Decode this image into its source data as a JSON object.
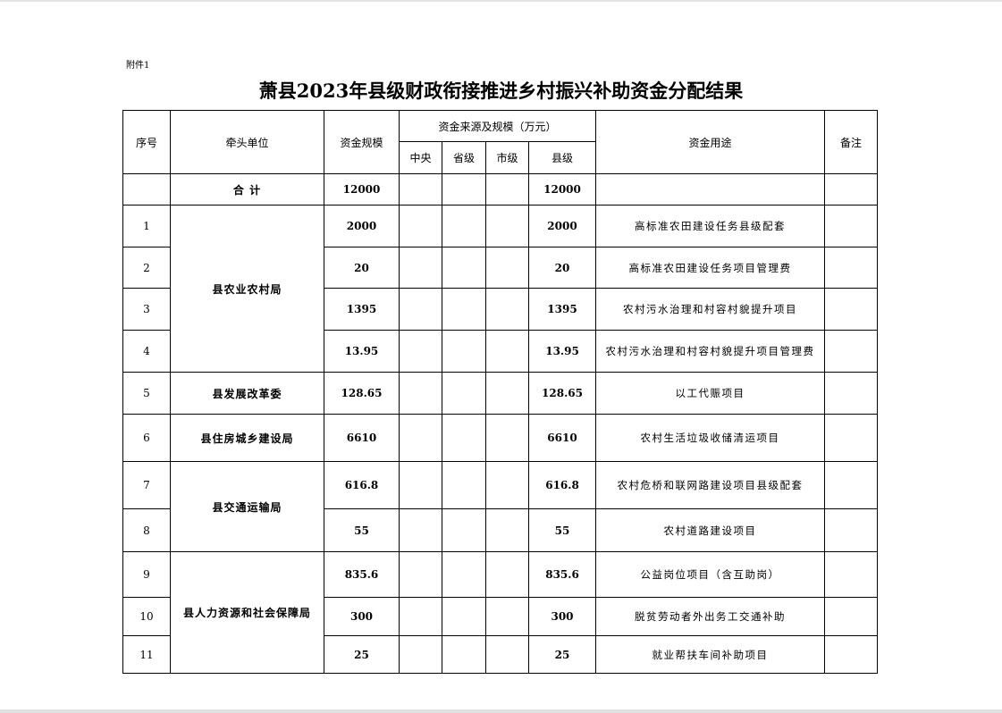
{
  "annex_label": "附件1",
  "title": "萧县2023年县级财政衔接推进乡村振兴补助资金分配结果",
  "headers": {
    "seq": "序号",
    "unit": "牵头单位",
    "scale": "资金规模",
    "source": "资金来源及规模（万元）",
    "central": "中央",
    "province": "省级",
    "city": "市级",
    "county": "县级",
    "usage": "资金用途",
    "note": "备注"
  },
  "total": {
    "label": "合 计",
    "scale": "12000",
    "county": "12000"
  },
  "units": [
    "县农业农村局",
    "县发展改革委",
    "县住房城乡建设局",
    "县交通运输局",
    "县人力资源和社会保障局"
  ],
  "rows": [
    {
      "seq": "1",
      "scale": "2000",
      "county": "2000",
      "usage": "高标准农田建设任务县级配套"
    },
    {
      "seq": "2",
      "scale": "20",
      "county": "20",
      "usage": "高标准农田建设任务项目管理费"
    },
    {
      "seq": "3",
      "scale": "1395",
      "county": "1395",
      "usage": "农村污水治理和村容村貌提升项目"
    },
    {
      "seq": "4",
      "scale": "13.95",
      "county": "13.95",
      "usage": "农村污水治理和村容村貌提升项目管理费"
    },
    {
      "seq": "5",
      "scale": "128.65",
      "county": "128.65",
      "usage": "以工代赈项目"
    },
    {
      "seq": "6",
      "scale": "6610",
      "county": "6610",
      "usage": "农村生活垃圾收储清运项目"
    },
    {
      "seq": "7",
      "scale": "616.8",
      "county": "616.8",
      "usage": "农村危桥和联网路建设项目县级配套"
    },
    {
      "seq": "8",
      "scale": "55",
      "county": "55",
      "usage": "农村道路建设项目"
    },
    {
      "seq": "9",
      "scale": "835.6",
      "county": "835.6",
      "usage": "公益岗位项目（含互助岗）"
    },
    {
      "seq": "10",
      "scale": "300",
      "county": "300",
      "usage": "脱贫劳动者外出务工交通补助"
    },
    {
      "seq": "11",
      "scale": "25",
      "county": "25",
      "usage": "就业帮扶车间补助项目"
    }
  ]
}
